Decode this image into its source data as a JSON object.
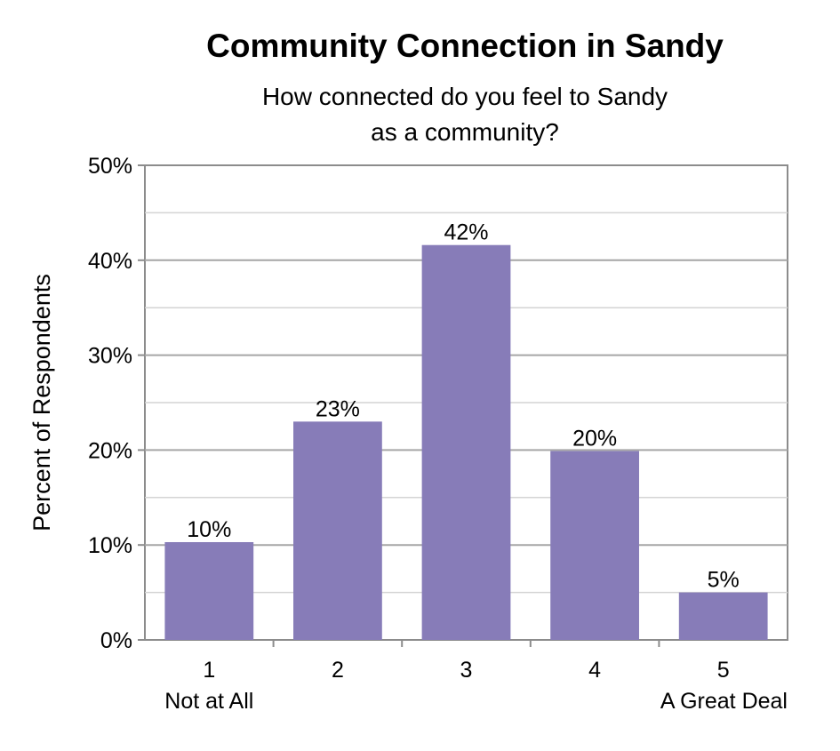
{
  "chart_data": {
    "type": "bar",
    "title": "Community Connection in Sandy",
    "subtitle_lines": [
      "How connected do you feel to Sandy",
      "as a community?"
    ],
    "xlabel": "",
    "ylabel": "Percent of Respondents",
    "ylim": [
      0,
      50
    ],
    "y_ticks": [
      0,
      10,
      20,
      30,
      40,
      50
    ],
    "y_tick_labels": [
      "0%",
      "10%",
      "20%",
      "30%",
      "40%",
      "50%"
    ],
    "categories": [
      "1",
      "2",
      "3",
      "4",
      "5"
    ],
    "category_sublabels": [
      "Not at All",
      "",
      "",
      "",
      "A Great Deal"
    ],
    "values": [
      10.3,
      23,
      41.6,
      19.9,
      5
    ],
    "data_labels": [
      "10%",
      "23%",
      "42%",
      "20%",
      "5%"
    ],
    "grid": true,
    "legend": "none",
    "colors": {
      "bar": "#877cb8",
      "grid": "#a6a6a6",
      "axis": "#8c8c8c"
    }
  }
}
